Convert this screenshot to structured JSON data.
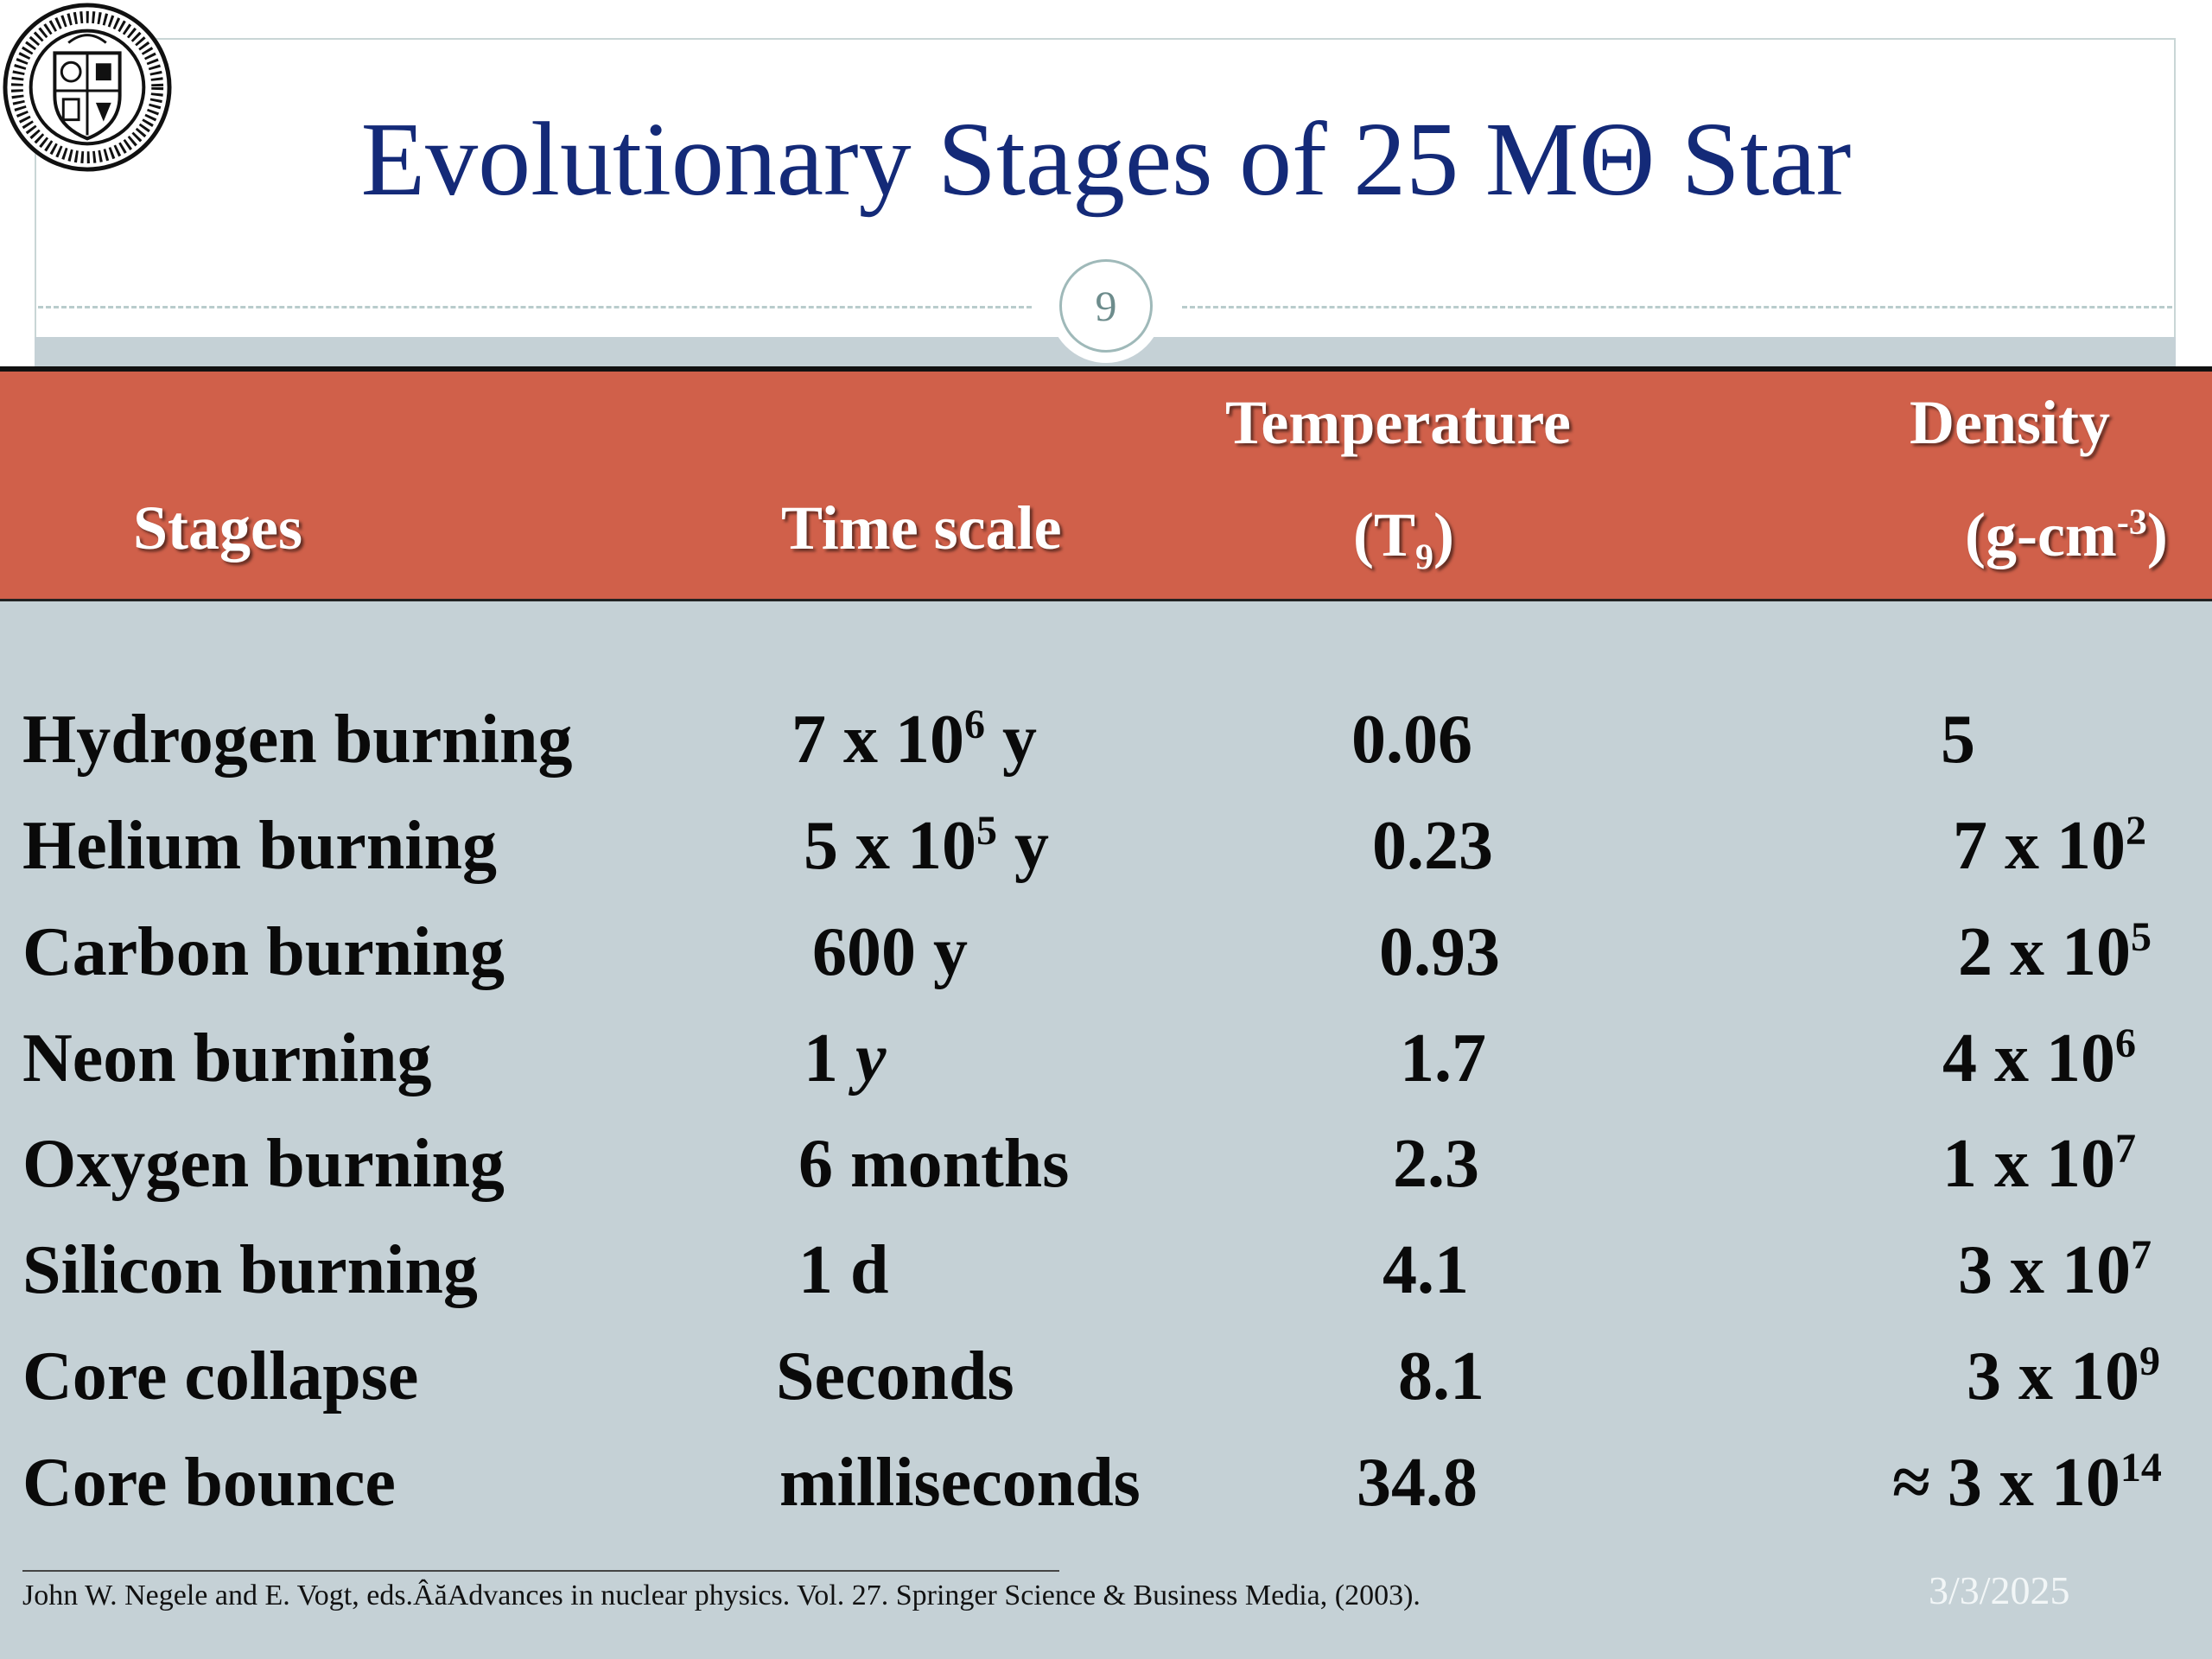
{
  "slide": {
    "title": "Evolutionary  Stages of 25 MΘ Star",
    "page_number": "9",
    "citation": "John W. Negele and E. Vogt, eds.ÂăAdvances in nuclear physics. Vol. 27. Springer Science & Business Media, (2003).",
    "date": "3/3/2025"
  },
  "table": {
    "headers": {
      "stages": "Stages",
      "time_scale": "Time scale",
      "temperature": "Temperature",
      "temperature_unit_open": "(T",
      "temperature_unit_sub": "9",
      "temperature_unit_close": ")",
      "density": "Density",
      "density_unit_open": "(g-cm",
      "density_unit_sup": "-3",
      "density_unit_close": ")"
    },
    "rows": [
      {
        "stage": "Hydrogen burning",
        "time": "7 x 10",
        "time_exp": "6",
        "time_suffix": " y",
        "temp": "0.06",
        "density": "5",
        "density_exp": ""
      },
      {
        "stage": "Helium burning",
        "time": "5 x 10",
        "time_exp": "5",
        "time_suffix": " y",
        "temp": "0.23",
        "density": "7 x 10",
        "density_exp": "2"
      },
      {
        "stage": "Carbon burning",
        "time": "600 y",
        "time_exp": "",
        "time_suffix": "",
        "temp": "0.93",
        "density": "2 x 10",
        "density_exp": "5"
      },
      {
        "stage": "Neon burning",
        "time": "1 ",
        "time_exp": "",
        "time_suffix": "y",
        "temp": "1.7",
        "density": "4 x 10",
        "density_exp": "6"
      },
      {
        "stage": "Oxygen burning",
        "time": "6 months",
        "time_exp": "",
        "time_suffix": "",
        "temp": "2.3",
        "density": "1 x 10",
        "density_exp": "7"
      },
      {
        "stage": "Silicon burning",
        "time": "1 d",
        "time_exp": "",
        "time_suffix": "",
        "temp": "4.1",
        "density": "3 x 10",
        "density_exp": "7"
      },
      {
        "stage": "Core collapse",
        "time": "Seconds",
        "time_exp": "",
        "time_suffix": "",
        "temp": "8.1",
        "density": "3 x 10",
        "density_exp": "9"
      },
      {
        "stage": "Core bounce",
        "time": "milliseconds",
        "time_exp": "",
        "time_suffix": "",
        "temp": "34.8",
        "density": "≈ 3 x 10",
        "density_exp": "14"
      }
    ]
  },
  "colors": {
    "title": "#142a78",
    "header_bg": "#d0604a",
    "table_bg": "#c5d1d6"
  },
  "icons": {
    "logo": "institute-seal-logo"
  }
}
